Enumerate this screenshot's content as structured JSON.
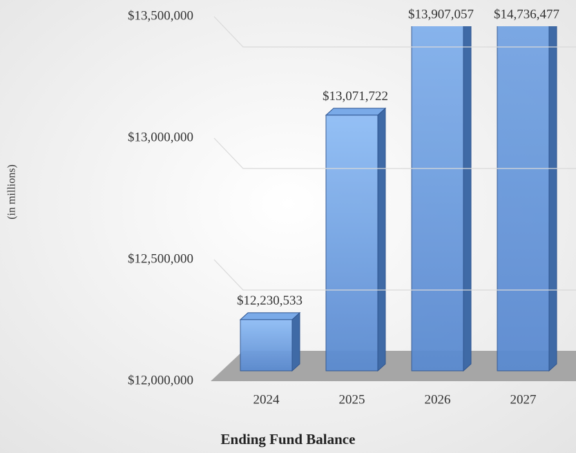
{
  "chart_data": {
    "type": "bar3d",
    "x_label": "Ending Fund Balance",
    "y_label": "(in millions)",
    "categories": [
      "2024",
      "2025",
      "2026",
      "2027"
    ],
    "values": [
      12230533,
      13071722,
      13907057,
      14736477
    ],
    "value_labels": [
      "$12,230,533",
      "$13,071,722",
      "$13,907,057",
      "$14,736,477"
    ],
    "color": "#5b8fd6",
    "ylim": [
      12000000,
      13500000
    ],
    "yticks": [
      {
        "value": 12000000,
        "label": "$12,000,000"
      },
      {
        "value": 12500000,
        "label": "$12,500,000"
      },
      {
        "value": 13000000,
        "label": "$13,000,000"
      },
      {
        "value": 13500000,
        "label": "$13,500,000"
      }
    ],
    "grid": true
  }
}
